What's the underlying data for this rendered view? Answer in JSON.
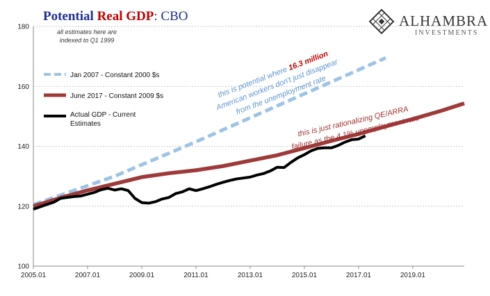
{
  "title": {
    "part1": "Potential ",
    "part2": "Real GDP",
    "part3": ":  CBO"
  },
  "note": {
    "line1": "all estimates here are",
    "line2": "indexed to Q1 1999"
  },
  "logo": {
    "name": "ALHAMBRA",
    "sub": "INVESTMENTS",
    "icon": "diamond-lattice-icon"
  },
  "annotations": {
    "blue_line1_a": "this is potential where ",
    "blue_line1_b": "16.3 million",
    "blue_line2": "American workers don't just disappear",
    "blue_line3": "from the unemployment rate",
    "red_line1": "this is just rationalizing QE/ARRA",
    "red_line2": "failure as the 4.1% unemployment rate"
  },
  "colors": {
    "jan2007": "#9dc3e6",
    "june2017": "#9e3a3a",
    "actual": "#000000",
    "grid": "#c8c8c8"
  },
  "chart_data": {
    "type": "line",
    "xlim": [
      2005.0,
      2020.9
    ],
    "ylim": [
      100,
      180
    ],
    "yticks": [
      100,
      120,
      140,
      160,
      180
    ],
    "xticks": [
      "2005.01",
      "2007.01",
      "2009.01",
      "2011.01",
      "2013.01",
      "2015.01",
      "2017.01",
      "2019.01"
    ],
    "grid": "horizontal",
    "legend_position": "top-left",
    "series": [
      {
        "name": "Jan 2007 - Constant 2000 $s",
        "style": "dashed",
        "x": [
          2005.0,
          2008.0,
          2011.0,
          2014.0,
          2016.0,
          2018.0
        ],
        "y": [
          120.5,
          130.0,
          141.5,
          153.5,
          161.5,
          169.5
        ]
      },
      {
        "name": "June 2017 - Constant 2009 $s",
        "style": "solid",
        "x": [
          2005.0,
          2006.0,
          2007.0,
          2008.0,
          2009.0,
          2010.0,
          2011.0,
          2012.0,
          2013.0,
          2014.0,
          2015.0,
          2016.0,
          2017.0,
          2018.0,
          2019.0,
          2020.0,
          2020.9
        ],
        "y": [
          120.0,
          122.8,
          125.3,
          127.5,
          129.7,
          131.0,
          132.0,
          133.4,
          135.2,
          137.0,
          139.4,
          141.8,
          144.1,
          146.6,
          149.1,
          151.7,
          154.3
        ]
      },
      {
        "name": "Actual GDP - Current Estimates",
        "style": "solid",
        "x": [
          2005.0,
          2005.25,
          2005.5,
          2005.75,
          2006.0,
          2006.25,
          2006.5,
          2006.75,
          2007.0,
          2007.25,
          2007.5,
          2007.75,
          2008.0,
          2008.25,
          2008.5,
          2008.75,
          2009.0,
          2009.25,
          2009.5,
          2009.75,
          2010.0,
          2010.25,
          2010.5,
          2010.75,
          2011.0,
          2011.25,
          2011.5,
          2011.75,
          2012.0,
          2012.25,
          2012.5,
          2012.75,
          2013.0,
          2013.25,
          2013.5,
          2013.75,
          2014.0,
          2014.25,
          2014.5,
          2014.75,
          2015.0,
          2015.25,
          2015.5,
          2015.75,
          2016.0,
          2016.25,
          2016.5,
          2016.75,
          2017.0,
          2017.25
        ],
        "y": [
          119.0,
          119.8,
          120.6,
          121.3,
          122.6,
          122.9,
          123.2,
          123.4,
          124.0,
          124.6,
          125.5,
          126.0,
          125.4,
          125.8,
          125.2,
          122.6,
          121.2,
          121.0,
          121.5,
          122.4,
          122.9,
          124.2,
          124.8,
          125.8,
          125.2,
          125.8,
          126.5,
          127.3,
          128.0,
          128.6,
          129.1,
          129.4,
          129.7,
          130.4,
          130.9,
          131.8,
          133.0,
          132.9,
          134.6,
          136.1,
          137.2,
          138.5,
          139.3,
          139.5,
          139.5,
          140.3,
          141.4,
          142.2,
          142.4,
          143.5
        ]
      }
    ]
  }
}
